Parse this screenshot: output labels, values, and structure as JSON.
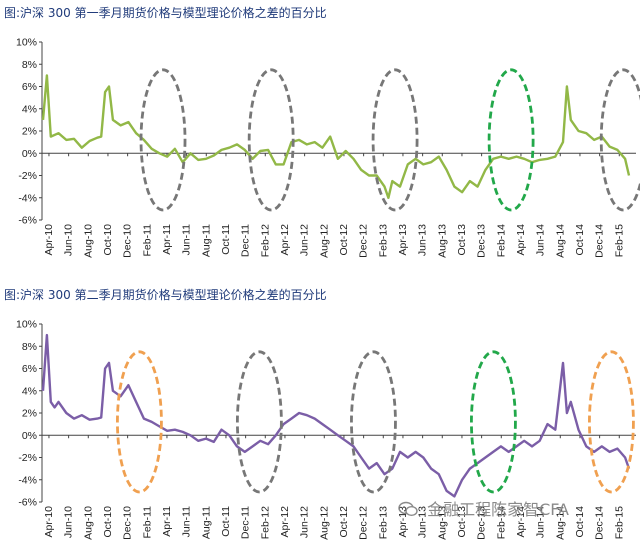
{
  "chart_data": [
    {
      "type": "line",
      "title": "图:沪深 300 第一季月期货价格与模型理论价格之差的百分比",
      "ylim": [
        -6,
        10
      ],
      "yticks": [
        "10%",
        "8%",
        "6%",
        "4%",
        "2%",
        "0%",
        "-2%",
        "-4%",
        "-6%"
      ],
      "ytick_values": [
        10,
        8,
        6,
        4,
        2,
        0,
        -2,
        -4,
        -6
      ],
      "x_ticks": [
        "Apr-10",
        "Jun-10",
        "Aug-10",
        "Oct-10",
        "Dec-10",
        "Feb-11",
        "Apr-11",
        "Jun-11",
        "Aug-11",
        "Oct-11",
        "Dec-11",
        "Feb-12",
        "Apr-12",
        "Jun-12",
        "Aug-12",
        "Oct-12",
        "Dec-12",
        "Feb-13",
        "Apr-13",
        "Jun-13",
        "Aug-13",
        "Oct-13",
        "Dec-13",
        "Feb-14",
        "Apr-14",
        "Jun-14",
        "Aug-14",
        "Oct-14",
        "Dec-14",
        "Feb-15"
      ],
      "series": [
        {
          "color": "#92b847",
          "points": [
            [
              0,
              3
            ],
            [
              1,
              7
            ],
            [
              2,
              1.5
            ],
            [
              4,
              1.8
            ],
            [
              6,
              1.2
            ],
            [
              8,
              1.3
            ],
            [
              10,
              0.5
            ],
            [
              12,
              1.1
            ],
            [
              14,
              1.4
            ],
            [
              15,
              1.5
            ],
            [
              16,
              5.5
            ],
            [
              17,
              6
            ],
            [
              18,
              3
            ],
            [
              20,
              2.5
            ],
            [
              22,
              2.8
            ],
            [
              24,
              1.8
            ],
            [
              26,
              1.2
            ],
            [
              28,
              0.4
            ],
            [
              30,
              0
            ],
            [
              32,
              -0.3
            ],
            [
              34,
              0.4
            ],
            [
              36,
              -0.8
            ],
            [
              38,
              0
            ],
            [
              40,
              -0.6
            ],
            [
              42,
              -0.5
            ],
            [
              44,
              -0.2
            ],
            [
              46,
              0.3
            ],
            [
              48,
              0.5
            ],
            [
              50,
              0.8
            ],
            [
              52,
              0.3
            ],
            [
              54,
              -0.5
            ],
            [
              56,
              0.2
            ],
            [
              58,
              0.3
            ],
            [
              60,
              -1
            ],
            [
              62,
              -1
            ],
            [
              64,
              1
            ],
            [
              66,
              1.2
            ],
            [
              68,
              0.8
            ],
            [
              70,
              1
            ],
            [
              72,
              0.5
            ],
            [
              74,
              1.5
            ],
            [
              76,
              -0.5
            ],
            [
              78,
              0.2
            ],
            [
              80,
              -0.5
            ],
            [
              82,
              -1.5
            ],
            [
              84,
              -2
            ],
            [
              86,
              -2
            ],
            [
              88,
              -3
            ],
            [
              89,
              -4
            ],
            [
              90,
              -2.5
            ],
            [
              92,
              -3
            ],
            [
              94,
              -1
            ],
            [
              96,
              -0.5
            ],
            [
              98,
              -1
            ],
            [
              100,
              -0.8
            ],
            [
              102,
              -0.3
            ],
            [
              104,
              -1.5
            ],
            [
              106,
              -3
            ],
            [
              108,
              -3.5
            ],
            [
              110,
              -2.5
            ],
            [
              112,
              -3
            ],
            [
              114,
              -1.5
            ],
            [
              116,
              -0.5
            ],
            [
              118,
              -0.3
            ],
            [
              120,
              -0.5
            ],
            [
              122,
              -0.3
            ],
            [
              124,
              -0.5
            ],
            [
              126,
              -0.8
            ],
            [
              128,
              -0.6
            ],
            [
              130,
              -0.5
            ],
            [
              132,
              -0.3
            ],
            [
              134,
              1
            ],
            [
              135,
              6
            ],
            [
              136,
              3
            ],
            [
              138,
              2
            ],
            [
              140,
              1.8
            ],
            [
              142,
              1.2
            ],
            [
              144,
              1.5
            ],
            [
              146,
              0.6
            ],
            [
              148,
              0.3
            ],
            [
              150,
              -0.5
            ],
            [
              151,
              -2
            ]
          ]
        }
      ],
      "ellipses": [
        {
          "x_index": 5.8,
          "color": "#777777"
        },
        {
          "x_index": 11.3,
          "color": "#777777"
        },
        {
          "x_index": 17.6,
          "color": "#777777"
        },
        {
          "x_index": 23.5,
          "color": "#22a84a"
        },
        {
          "x_index": 29.2,
          "color": "#777777"
        }
      ]
    },
    {
      "type": "line",
      "title": "图:沪深 300 第二季月期货价格与模型理论价格之差的百分比",
      "ylim": [
        -6,
        10
      ],
      "yticks": [
        "10%",
        "8%",
        "6%",
        "4%",
        "2%",
        "0%",
        "-2%",
        "-4%",
        "-6%"
      ],
      "ytick_values": [
        10,
        8,
        6,
        4,
        2,
        0,
        -2,
        -4,
        -6
      ],
      "x_ticks": [
        "Apr-10",
        "Jun-10",
        "Aug-10",
        "Oct-10",
        "Dec-10",
        "Feb-11",
        "Apr-11",
        "Jun-11",
        "Aug-11",
        "Oct-11",
        "Dec-11",
        "Feb-12",
        "Apr-12",
        "Jun-12",
        "Aug-12",
        "Oct-12",
        "Dec-12",
        "Feb-13",
        "Apr-13",
        "Jun-13",
        "Aug-13",
        "Oct-13",
        "Dec-13",
        "Feb-14",
        "Apr-14",
        "Jun-14",
        "Aug-14",
        "Oct-14",
        "Dec-14",
        "Feb-15"
      ],
      "series": [
        {
          "color": "#7b5ea7",
          "points": [
            [
              0,
              4
            ],
            [
              1,
              9
            ],
            [
              2,
              3
            ],
            [
              3,
              2.5
            ],
            [
              4,
              3
            ],
            [
              6,
              2
            ],
            [
              8,
              1.5
            ],
            [
              10,
              1.8
            ],
            [
              12,
              1.4
            ],
            [
              14,
              1.5
            ],
            [
              15,
              1.6
            ],
            [
              16,
              6
            ],
            [
              17,
              6.5
            ],
            [
              18,
              4
            ],
            [
              20,
              3.5
            ],
            [
              22,
              4.5
            ],
            [
              24,
              3
            ],
            [
              26,
              1.5
            ],
            [
              28,
              1.2
            ],
            [
              30,
              0.8
            ],
            [
              32,
              0.4
            ],
            [
              34,
              0.5
            ],
            [
              36,
              0.3
            ],
            [
              38,
              0
            ],
            [
              40,
              -0.5
            ],
            [
              42,
              -0.3
            ],
            [
              44,
              -0.6
            ],
            [
              46,
              0.5
            ],
            [
              48,
              0
            ],
            [
              50,
              -1
            ],
            [
              52,
              -1.5
            ],
            [
              54,
              -1
            ],
            [
              56,
              -0.5
            ],
            [
              58,
              -0.8
            ],
            [
              60,
              0
            ],
            [
              62,
              1
            ],
            [
              64,
              1.5
            ],
            [
              66,
              2
            ],
            [
              68,
              1.8
            ],
            [
              70,
              1.5
            ],
            [
              72,
              1
            ],
            [
              74,
              0.5
            ],
            [
              76,
              0
            ],
            [
              78,
              -0.5
            ],
            [
              80,
              -1
            ],
            [
              82,
              -2
            ],
            [
              84,
              -3
            ],
            [
              86,
              -2.5
            ],
            [
              88,
              -3.5
            ],
            [
              90,
              -3
            ],
            [
              92,
              -1.5
            ],
            [
              94,
              -2
            ],
            [
              96,
              -1.5
            ],
            [
              98,
              -2
            ],
            [
              100,
              -3
            ],
            [
              102,
              -3.5
            ],
            [
              104,
              -5
            ],
            [
              106,
              -5.5
            ],
            [
              108,
              -4
            ],
            [
              110,
              -3
            ],
            [
              112,
              -2.5
            ],
            [
              114,
              -2
            ],
            [
              116,
              -1.5
            ],
            [
              118,
              -1
            ],
            [
              120,
              -1.5
            ],
            [
              122,
              -1
            ],
            [
              124,
              -0.5
            ],
            [
              126,
              -1
            ],
            [
              128,
              -0.5
            ],
            [
              130,
              1
            ],
            [
              132,
              0.5
            ],
            [
              134,
              6.5
            ],
            [
              135,
              2
            ],
            [
              136,
              3
            ],
            [
              138,
              0.5
            ],
            [
              140,
              -1
            ],
            [
              142,
              -1.5
            ],
            [
              144,
              -1
            ],
            [
              146,
              -1.5
            ],
            [
              148,
              -1.2
            ],
            [
              150,
              -2
            ],
            [
              151,
              -3
            ]
          ]
        }
      ],
      "ellipses": [
        {
          "x_index": 4.6,
          "color": "#f0a050"
        },
        {
          "x_index": 10.7,
          "color": "#777777"
        },
        {
          "x_index": 16.5,
          "color": "#777777"
        },
        {
          "x_index": 22.6,
          "color": "#22a84a"
        },
        {
          "x_index": 28.6,
          "color": "#f0a050"
        }
      ]
    }
  ],
  "watermark": {
    "text": "金融工程陈家智CFA",
    "icon": "wechat-icon"
  }
}
